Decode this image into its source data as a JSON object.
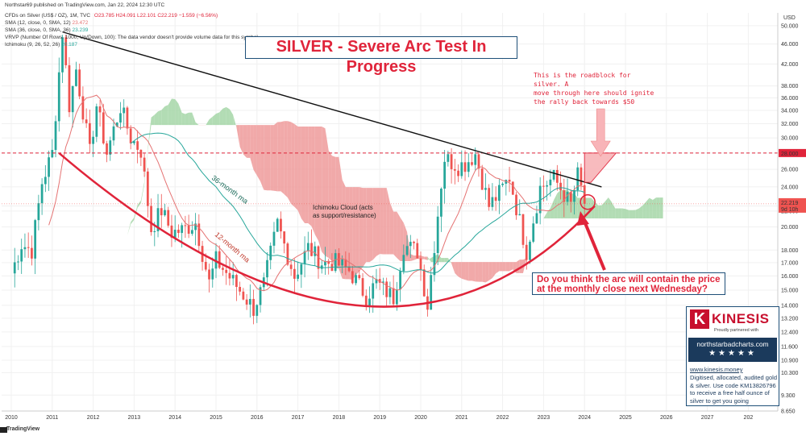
{
  "header": {
    "published": "Northstar69 published on TradingView.com, Jan 22, 2024 12:30 UTC",
    "symbol_line": "CFDs on Silver (US$ / OZ), 1M, TVC",
    "ohlc": "O23.785 H24.091 L22.101 C22.219 −1.559 (−6.56%)",
    "sma12": "SMA (12, close, 0, SMA, 12)",
    "sma12_value": "23.472",
    "sma36": "SMA (36, close, 0, SMA, 36)",
    "sma36_value": "23.239",
    "vrvp": "VRVP (Number Of Rows, 1000, Up/Down, 100): The data vendor doesn't provide volume data for this symbol.",
    "ichimoku": "Ichimoku (9, 26, 52, 26)",
    "ichimoku_value": "20.187"
  },
  "title": "SILVER - Severe Arc Test In Progress",
  "roadblock_note": [
    "This is the roadblock for silver. A",
    "move through here should ignite",
    "the rally back towards $50"
  ],
  "question": [
    "Do you think the arc will contain the price",
    "at the monthly close  next Wednesday?"
  ],
  "cloud_label": [
    "Ichimoku Cloud (acts",
    "as support/resistance)"
  ],
  "ma36_label": "36-month ma",
  "ma12_label": "12-month ma",
  "price_current": "22.219",
  "price_countdown": "9d 10h",
  "price_level": "28.000",
  "axis_unit": "USD",
  "brand": "TradingView",
  "sponsor": {
    "logo_letter": "K",
    "name": "KINESIS",
    "tagline": "Proudly partnered with",
    "site": "northstarbadcharts.com",
    "stars": "★★★★★",
    "web": "www.kinesis.money",
    "body": "Digitised, allocated, audited gold & silver. Use code KM13826796 to receive a free half ounce of silver to get you going"
  },
  "colors": {
    "up": "#26a69a",
    "down": "#ef5350",
    "sma12": "#e57373",
    "sma36": "#26a69a",
    "cloud_bull": "#a5d6a7",
    "cloud_bear": "#ef9a9a",
    "arc": "#e0243a",
    "trendline": "#111111",
    "level": "#e0243a"
  },
  "chart_data": {
    "type": "candlestick",
    "timeframe": "1M",
    "y_scale": "log",
    "ylim": [
      8.65,
      53
    ],
    "xlim": [
      "2009-09",
      "2027-12"
    ],
    "x_ticks": [
      "2010",
      "2011",
      "2012",
      "2013",
      "2014",
      "2015",
      "2016",
      "2017",
      "2018",
      "2019",
      "2020",
      "2021",
      "2022",
      "2023",
      "2024",
      "2025",
      "2026",
      "2027",
      "202"
    ],
    "y_ticks": [
      50.0,
      46.0,
      42.0,
      38.0,
      36.0,
      34.0,
      32.0,
      30.0,
      28.0,
      26.0,
      24.0,
      22.0,
      21.5,
      20.0,
      18.0,
      17.0,
      16.0,
      15.0,
      14.0,
      13.2,
      12.4,
      11.6,
      10.9,
      10.3,
      9.3,
      8.65
    ],
    "y_tick_labels": [
      "50.000",
      "46.000",
      "42.000",
      "38.000",
      "36.000",
      "34.000",
      "32.000",
      "30.000",
      "28.000",
      "26.000",
      "24.000",
      "22.000",
      "21.500",
      "20.000",
      "18.000",
      "17.000",
      "16.000",
      "15.000",
      "14.000",
      "13.200",
      "12.400",
      "11.600",
      "10.900",
      "10.300",
      "9.300",
      "8.650"
    ],
    "monthly_close_approx": [
      [
        "2010-01",
        16.2
      ],
      [
        "2010-04",
        18.5
      ],
      [
        "2010-07",
        18.0
      ],
      [
        "2010-10",
        24.5
      ],
      [
        "2011-01",
        28.0
      ],
      [
        "2011-04",
        48.6
      ],
      [
        "2011-06",
        34.8
      ],
      [
        "2011-08",
        41.0
      ],
      [
        "2011-10",
        34.0
      ],
      [
        "2011-12",
        28.0
      ],
      [
        "2012-02",
        34.8
      ],
      [
        "2012-05",
        28.0
      ],
      [
        "2012-09",
        34.6
      ],
      [
        "2012-12",
        30.0
      ],
      [
        "2013-03",
        28.3
      ],
      [
        "2013-06",
        19.8
      ],
      [
        "2013-09",
        21.6
      ],
      [
        "2013-12",
        19.5
      ],
      [
        "2014-03",
        19.7
      ],
      [
        "2014-07",
        20.4
      ],
      [
        "2014-11",
        15.5
      ],
      [
        "2015-01",
        17.2
      ],
      [
        "2015-06",
        15.6
      ],
      [
        "2015-11",
        14.1
      ],
      [
        "2015-12",
        13.8
      ],
      [
        "2016-03",
        15.4
      ],
      [
        "2016-07",
        20.3
      ],
      [
        "2016-12",
        16.0
      ],
      [
        "2017-04",
        18.2
      ],
      [
        "2017-08",
        17.0
      ],
      [
        "2017-12",
        17.0
      ],
      [
        "2018-04",
        16.4
      ],
      [
        "2018-09",
        14.6
      ],
      [
        "2018-12",
        15.5
      ],
      [
        "2019-05",
        14.5
      ],
      [
        "2019-08",
        18.4
      ],
      [
        "2019-12",
        17.9
      ],
      [
        "2020-03",
        14.0
      ],
      [
        "2020-07",
        24.4
      ],
      [
        "2020-08",
        27.4
      ],
      [
        "2020-12",
        26.4
      ],
      [
        "2021-02",
        26.7
      ],
      [
        "2021-05",
        27.9
      ],
      [
        "2021-09",
        22.0
      ],
      [
        "2021-12",
        23.3
      ],
      [
        "2022-03",
        25.1
      ],
      [
        "2022-08",
        17.9
      ],
      [
        "2022-12",
        23.9
      ],
      [
        "2023-04",
        25.0
      ],
      [
        "2023-09",
        22.1
      ],
      [
        "2023-11",
        25.3
      ],
      [
        "2023-12",
        23.8
      ],
      [
        "2024-01",
        22.219
      ]
    ],
    "annotations": {
      "resistance_level": 28.0,
      "trendline": [
        [
          "2011-04",
          48.6
        ],
        [
          "2024-06",
          24.0
        ]
      ],
      "arc": [
        [
          "2011-03",
          28.0
        ],
        [
          "2018-06",
          14.0
        ],
        [
          "2024-04",
          22.0
        ]
      ],
      "roadblock_zone": [
        [
          "2024-01",
          24.5
        ],
        [
          "2024-06",
          28.0
        ]
      ]
    }
  }
}
